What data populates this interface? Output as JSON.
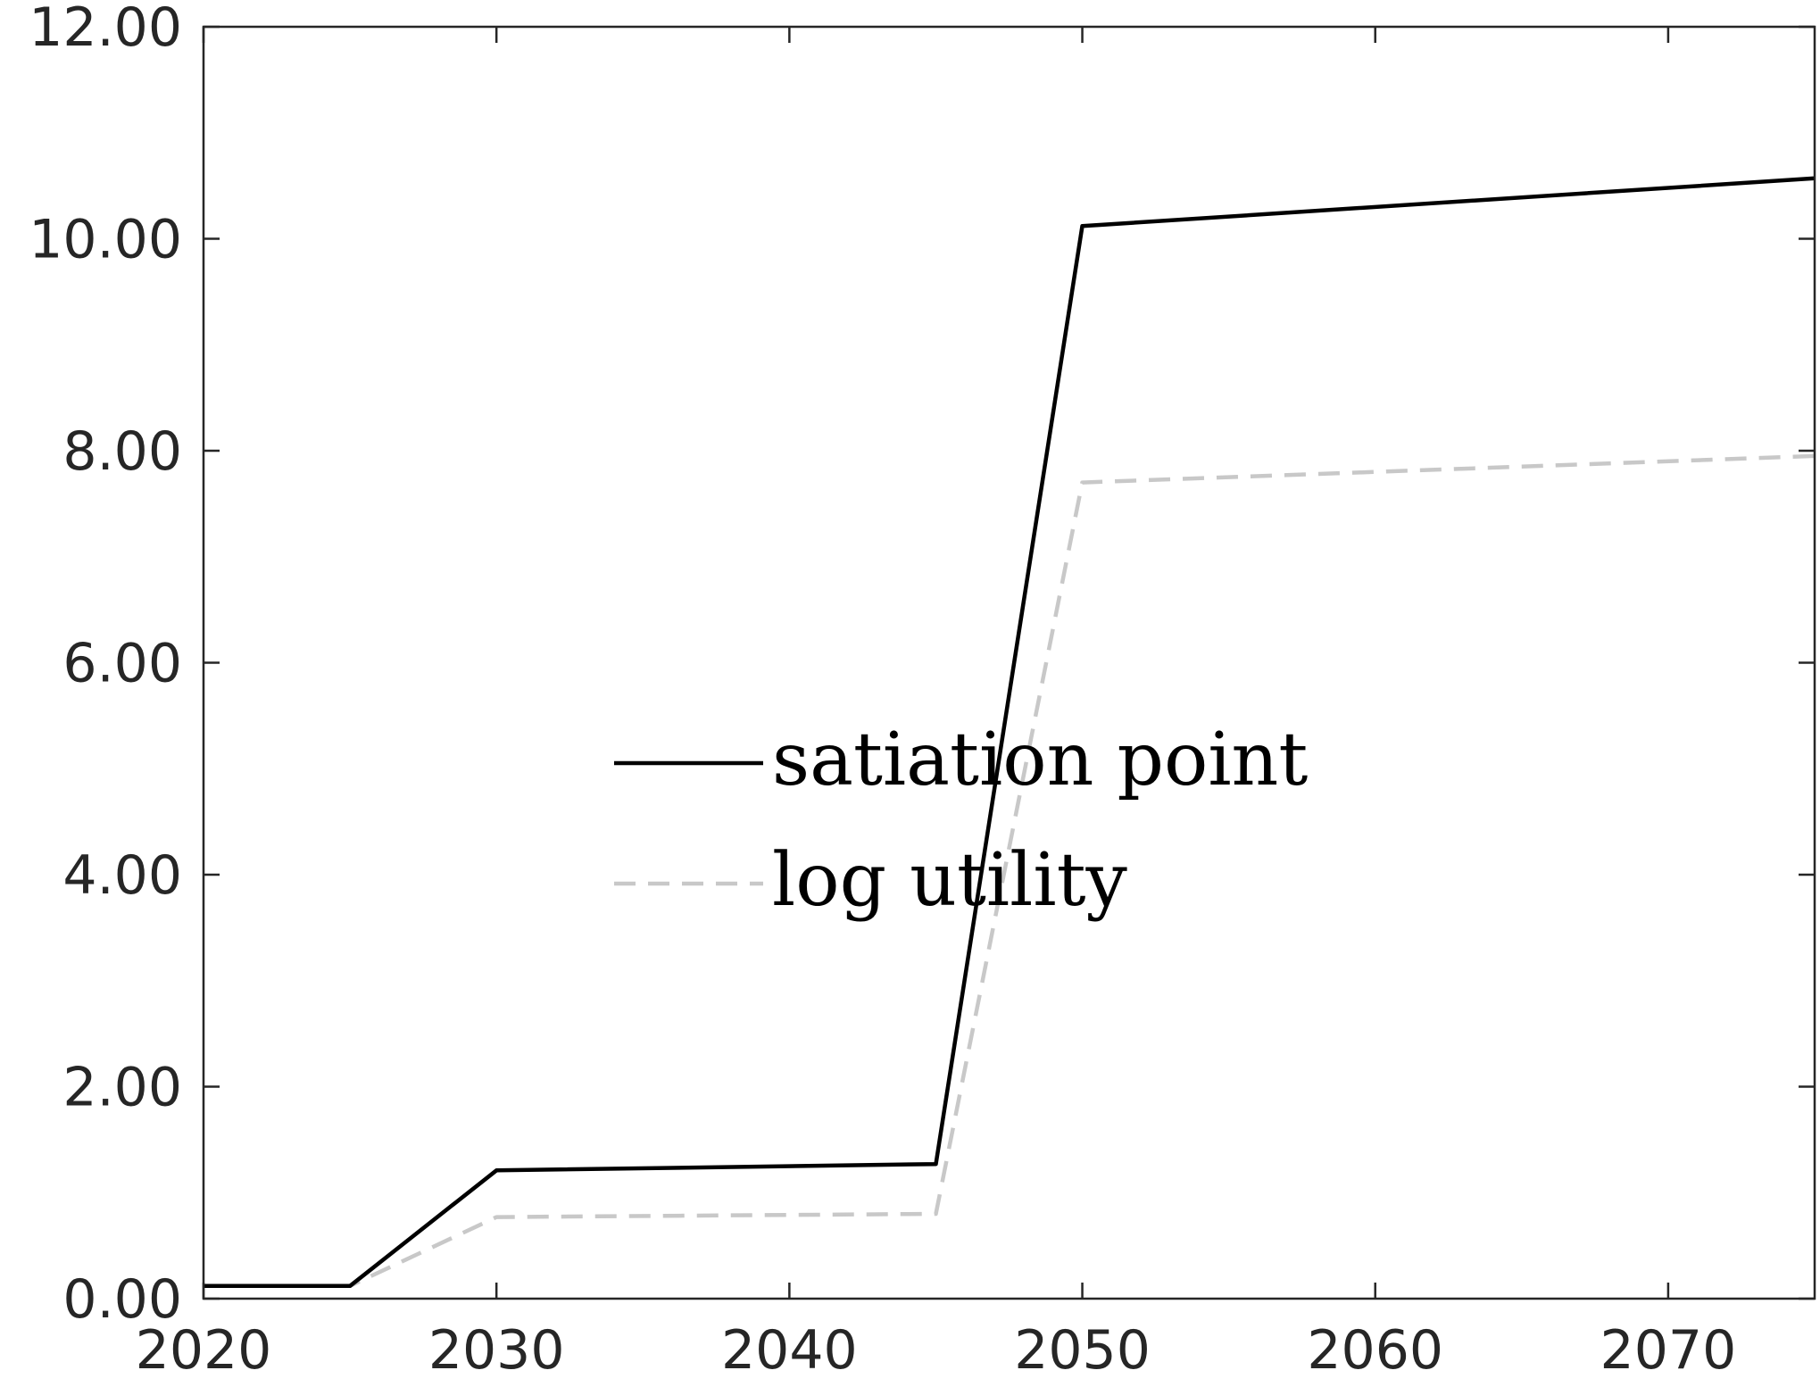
{
  "chart_data": {
    "type": "line",
    "title": "",
    "xlabel": "",
    "ylabel": "",
    "x": [
      2020,
      2025,
      2030,
      2045,
      2050,
      2075
    ],
    "xlim": [
      2020,
      2075
    ],
    "ylim": [
      0,
      12
    ],
    "x_ticks": [
      2020,
      2030,
      2040,
      2050,
      2060,
      2070
    ],
    "x_tick_labels": [
      "2020",
      "2030",
      "2040",
      "2050",
      "2060",
      "2070"
    ],
    "y_ticks": [
      0,
      2,
      4,
      6,
      8,
      10,
      12
    ],
    "y_tick_labels": [
      "0.00",
      "2.00",
      "4.00",
      "6.00",
      "8.00",
      "10.00",
      "12.00"
    ],
    "grid": false,
    "legend_position": "center",
    "series": [
      {
        "name": "satiation point",
        "color": "#000000",
        "style": "solid",
        "values": [
          0.12,
          0.12,
          1.21,
          1.27,
          10.12,
          10.57
        ]
      },
      {
        "name": "log utility",
        "color": "#c8c8c8",
        "style": "dashed",
        "values": [
          0.12,
          0.12,
          0.77,
          0.8,
          7.7,
          7.95
        ]
      }
    ]
  }
}
